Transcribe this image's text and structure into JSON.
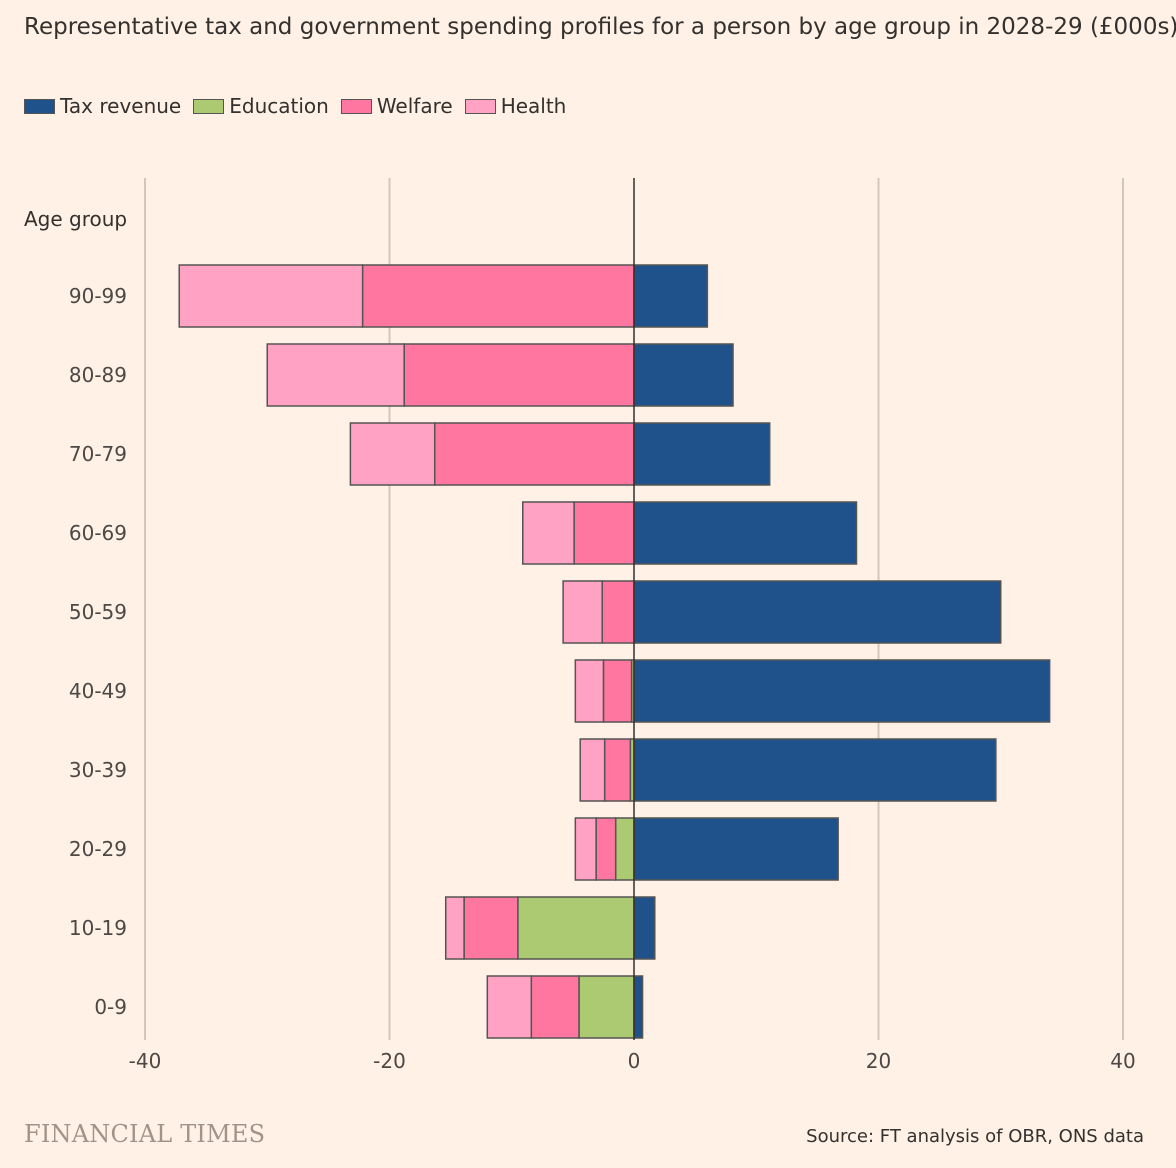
{
  "title": "Representative tax and government spending profiles for a person by age group in 2028-29 (£000s)",
  "legend": [
    {
      "label": "Tax revenue",
      "color": "#1F528B"
    },
    {
      "label": "Education",
      "color": "#ABCA72"
    },
    {
      "label": "Welfare",
      "color": "#FF77A0"
    },
    {
      "label": "Health",
      "color": "#FFA2C3"
    }
  ],
  "colors": {
    "background": "#FFF1E5",
    "gridline": "#D4C7BA",
    "zero_line": "#33302E",
    "bar_stroke": "#555555"
  },
  "footer": {
    "brand": "FINANCIAL TIMES",
    "source": "Source: FT analysis of OBR, ONS data"
  },
  "chart_data": {
    "type": "bar",
    "orientation": "horizontal",
    "stacked": true,
    "category_axis_title": "Age group",
    "categories": [
      "90-99",
      "80-89",
      "70-79",
      "60-69",
      "50-59",
      "40-49",
      "30-39",
      "20-29",
      "10-19",
      "0-9"
    ],
    "series": [
      {
        "name": "Tax revenue",
        "values": [
          6.0,
          8.1,
          11.1,
          18.2,
          30.0,
          34.0,
          29.6,
          16.7,
          1.7,
          0.7
        ]
      },
      {
        "name": "Education",
        "values": [
          0,
          0,
          0,
          0,
          0,
          -0.2,
          -0.3,
          -1.5,
          -9.5,
          -4.5
        ]
      },
      {
        "name": "Welfare",
        "values": [
          -22.2,
          -18.8,
          -16.3,
          -4.9,
          -2.6,
          -2.3,
          -2.1,
          -1.6,
          -4.4,
          -3.9
        ]
      },
      {
        "name": "Health",
        "values": [
          -15.0,
          -11.2,
          -6.9,
          -4.2,
          -3.2,
          -2.3,
          -2.0,
          -1.7,
          -1.5,
          -3.6
        ]
      }
    ],
    "xlim": [
      -40,
      40
    ],
    "xticks": [
      -40,
      -20,
      0,
      20,
      40
    ],
    "xtick_labels": [
      "-40",
      "-20",
      "0",
      "20",
      "40"
    ],
    "grid": "vertical",
    "legend_position": "top-left"
  }
}
